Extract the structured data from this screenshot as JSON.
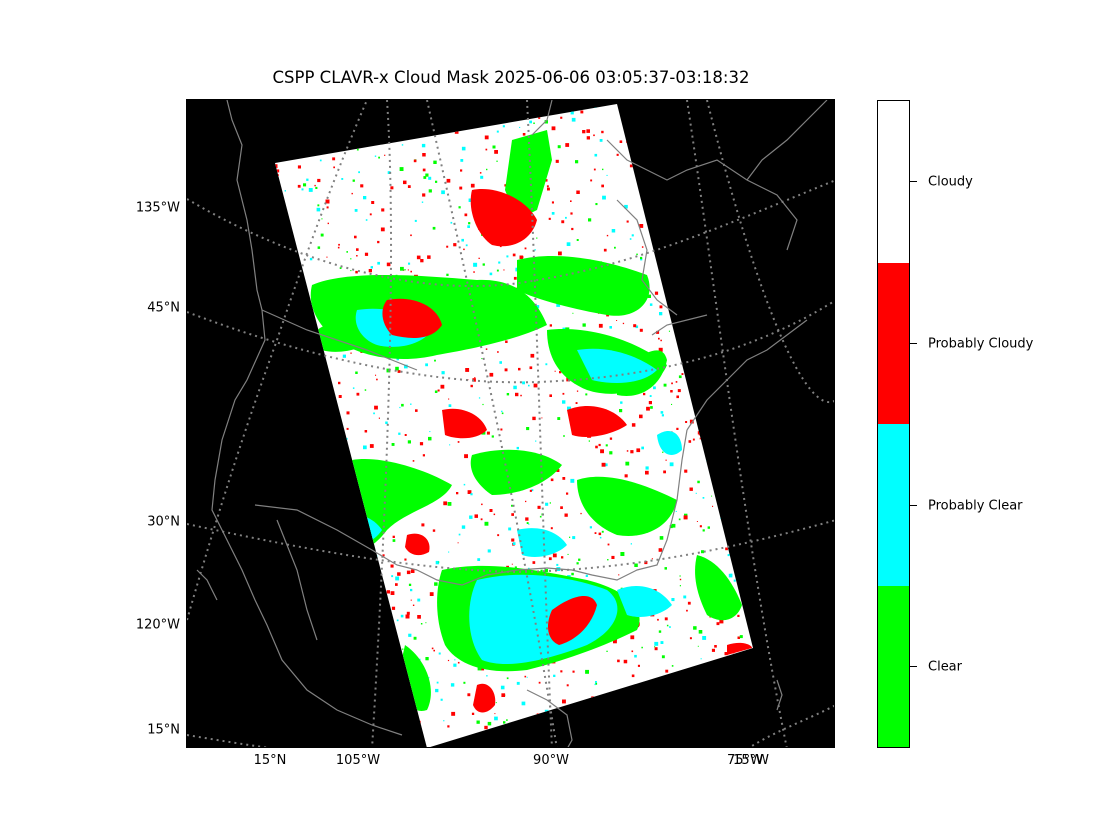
{
  "title": "CSPP CLAVR-x Cloud Mask 2025-06-06 03:05:37-03:18:32",
  "map": {
    "background": "#000000",
    "coastline_color": "#808080",
    "gridline_color": "#808080",
    "gridline_style": "dotted",
    "left_labels": [
      "135°W",
      "45°N",
      "30°N",
      "120°W",
      "15°N"
    ],
    "bottom_labels": [
      "15°N",
      "105°W",
      "90°W",
      "75°W",
      "15°W"
    ]
  },
  "legend": {
    "categories": [
      {
        "label": "Cloudy",
        "color": "#ffffff"
      },
      {
        "label": "Probably Cloudy",
        "color": "#ff0000"
      },
      {
        "label": "Probably Clear",
        "color": "#00ffff"
      },
      {
        "label": "Clear",
        "color": "#00ff00"
      }
    ]
  }
}
